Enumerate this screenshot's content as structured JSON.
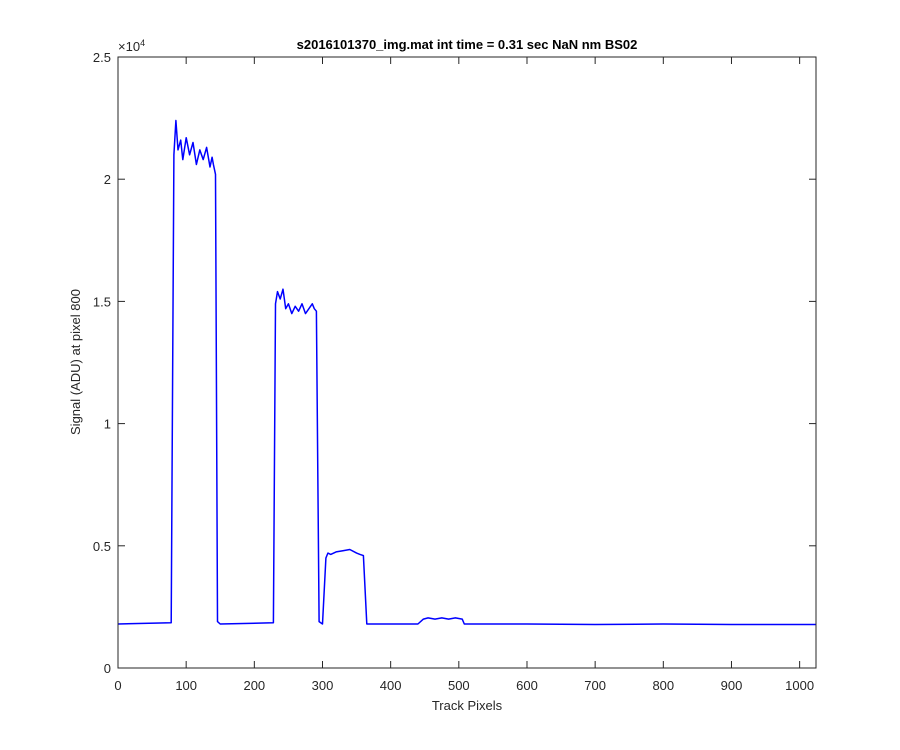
{
  "chart_data": {
    "type": "line",
    "title": "s2016101370_img.mat int time = 0.31 sec  NaN nm BS02",
    "xlabel": "Track Pixels",
    "ylabel": "Signal (ADU) at pixel 800",
    "exponent_base": "×10",
    "exponent_power": "4",
    "xlim": [
      0,
      1024
    ],
    "ylim": [
      0,
      25000
    ],
    "xticks": [
      0,
      100,
      200,
      300,
      400,
      500,
      600,
      700,
      800,
      900,
      1000
    ],
    "xtick_labels": [
      "0",
      "100",
      "200",
      "300",
      "400",
      "500",
      "600",
      "700",
      "800",
      "900",
      "1000"
    ],
    "yticks": [
      0,
      5000,
      10000,
      15000,
      20000,
      25000
    ],
    "ytick_labels": [
      "0",
      "0.5",
      "1",
      "1.5",
      "2",
      "2.5"
    ],
    "grid": false,
    "line_color": "#0000ff",
    "series": [
      {
        "x": [
          0,
          78,
          82,
          85,
          88,
          92,
          95,
          100,
          105,
          110,
          115,
          120,
          125,
          130,
          135,
          138,
          140,
          143,
          146,
          150,
          228,
          231,
          234,
          238,
          242,
          246,
          250,
          255,
          260,
          265,
          270,
          275,
          280,
          285,
          288,
          291,
          295,
          300,
          305,
          308,
          312,
          320,
          330,
          340,
          350,
          355,
          360,
          365,
          440,
          448,
          455,
          465,
          475,
          485,
          495,
          505,
          508,
          512,
          600,
          700,
          800,
          900,
          1024
        ],
        "y": [
          1800,
          1850,
          21000,
          22400,
          21200,
          21600,
          20800,
          21700,
          21000,
          21500,
          20600,
          21200,
          20800,
          21300,
          20500,
          20900,
          20600,
          20200,
          1900,
          1800,
          1850,
          14900,
          15400,
          15100,
          15500,
          14700,
          14900,
          14500,
          14800,
          14600,
          14900,
          14500,
          14700,
          14900,
          14700,
          14600,
          1900,
          1800,
          4500,
          4700,
          4650,
          4750,
          4800,
          4850,
          4700,
          4650,
          4600,
          1800,
          1800,
          2000,
          2050,
          2000,
          2050,
          2000,
          2050,
          2000,
          1800,
          1800,
          1800,
          1780,
          1800,
          1780,
          1780
        ]
      }
    ]
  }
}
